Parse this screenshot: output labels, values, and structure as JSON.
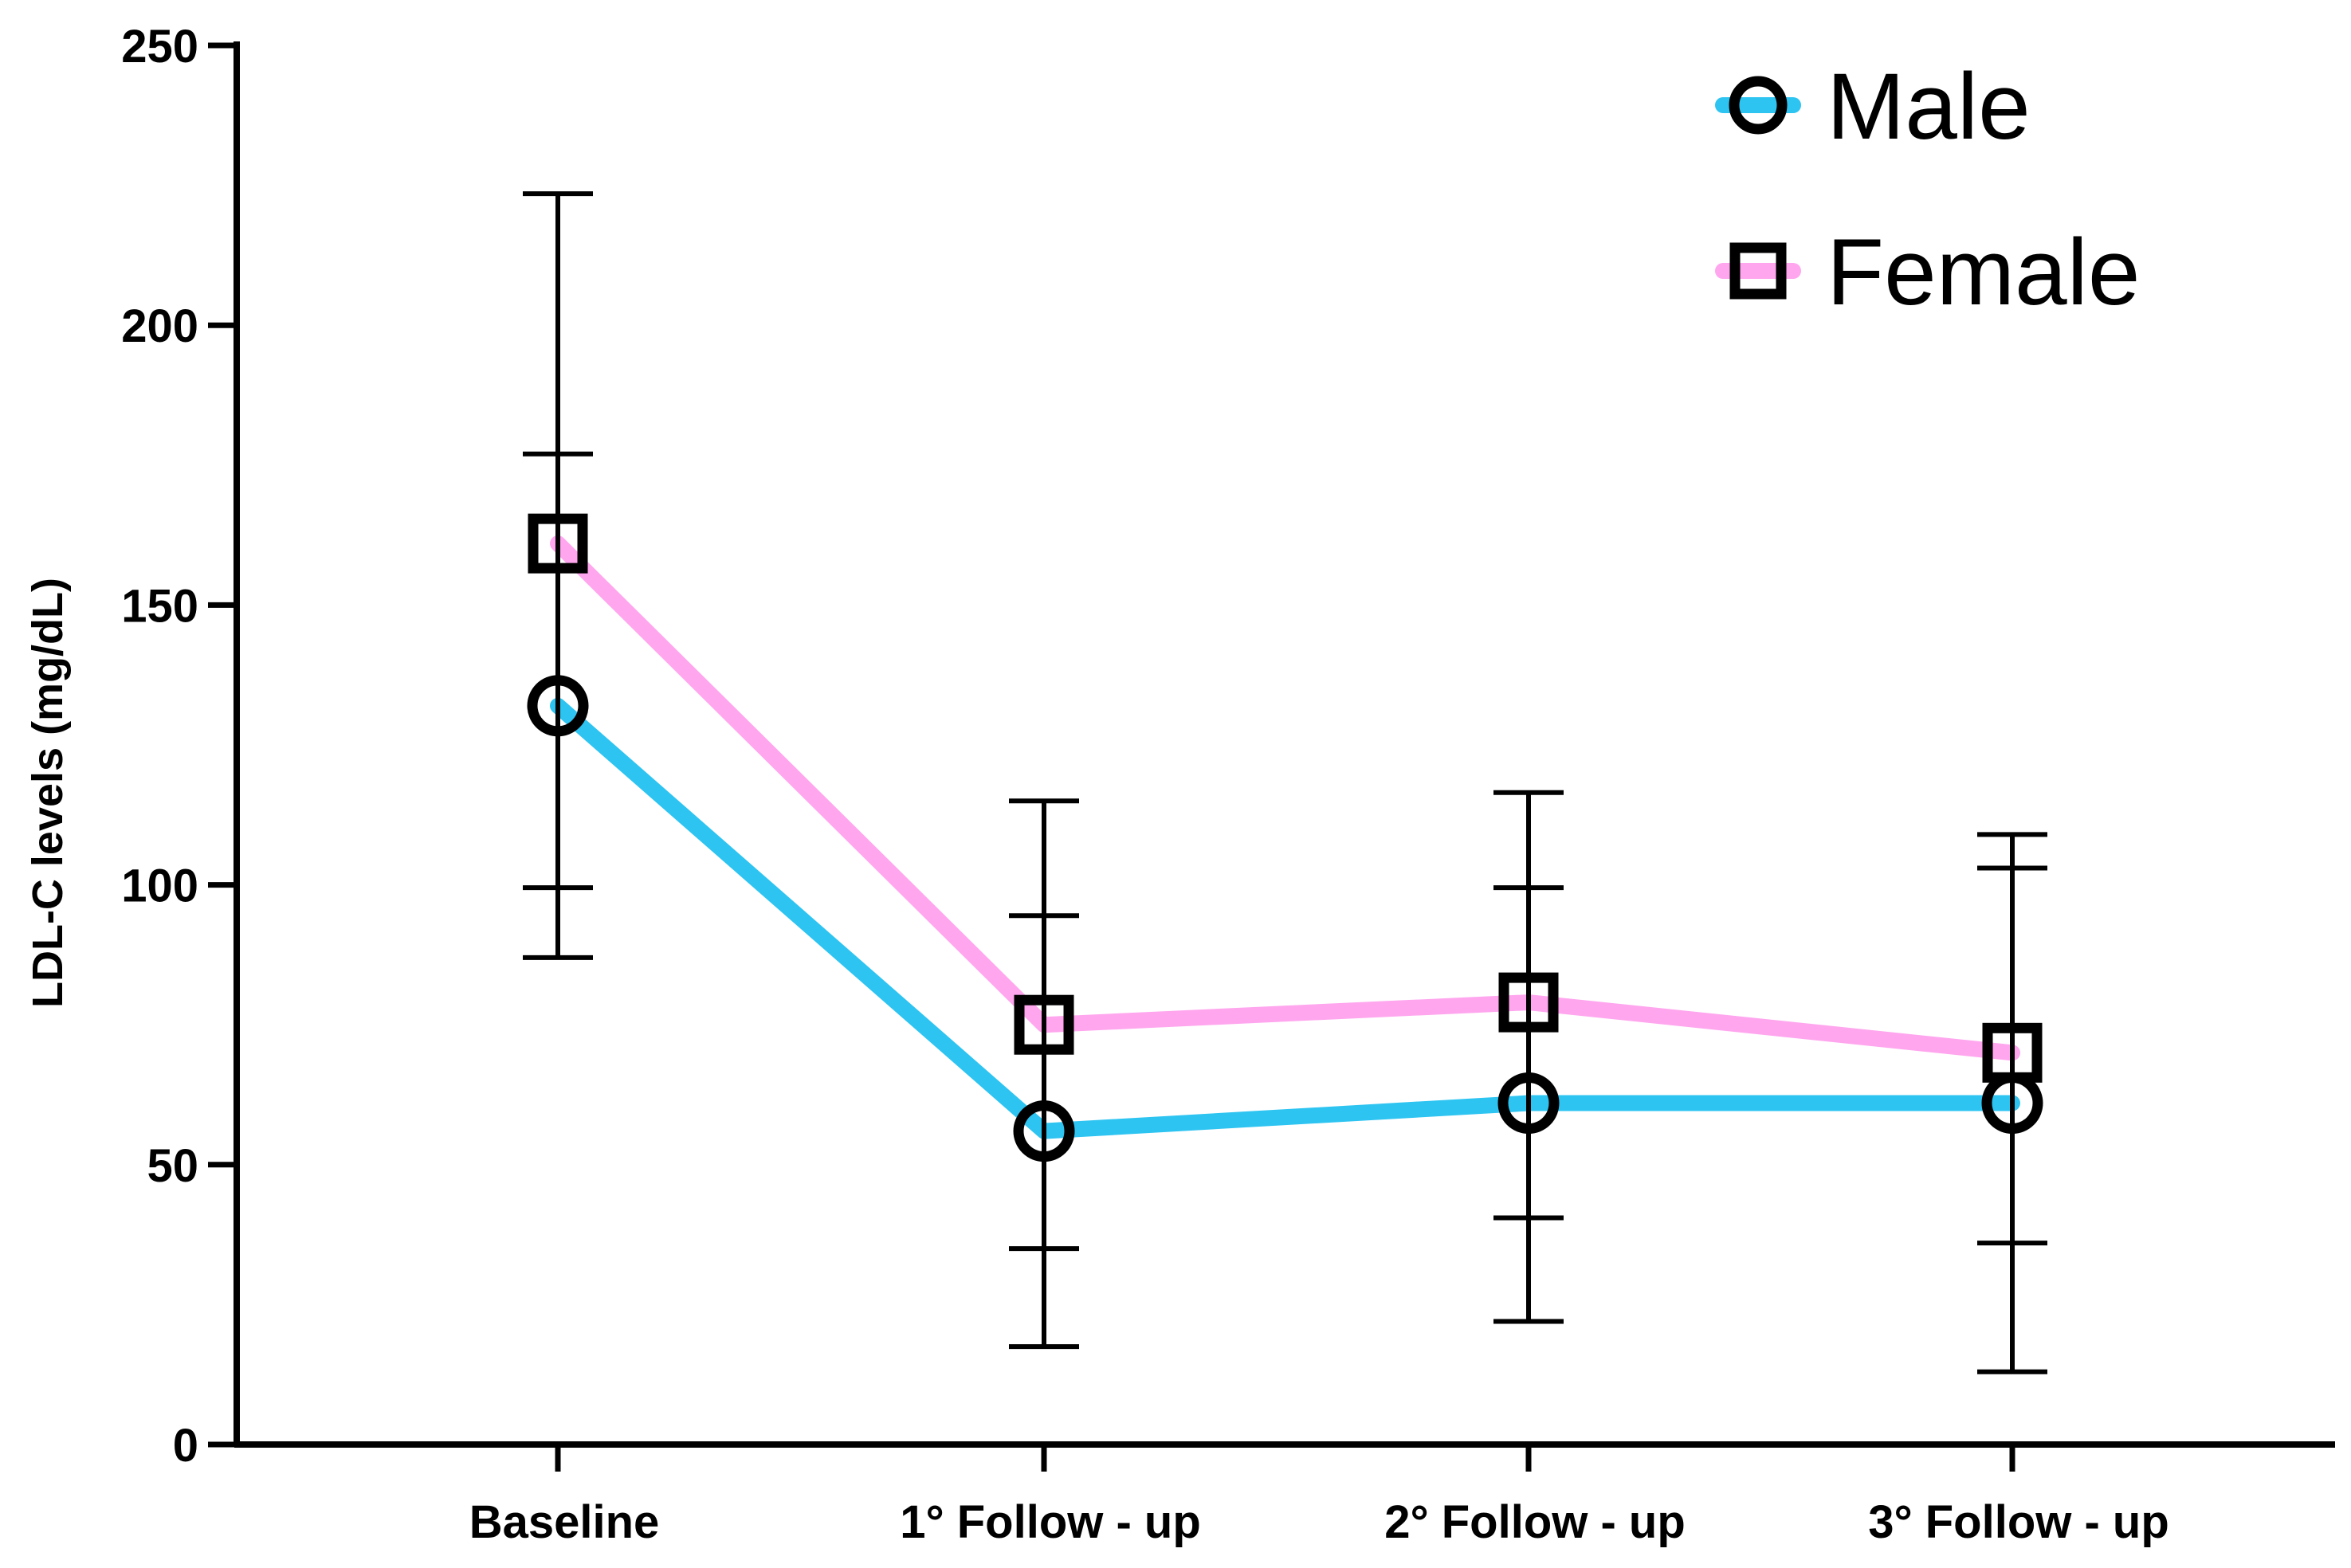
{
  "chart_data": {
    "type": "line",
    "categories": [
      "Baseline",
      "1° Follow - up",
      "2° Follow - up",
      "3° Follow - up"
    ],
    "ylabel": "LDL-C levels (mg/dL)",
    "xlabel": "",
    "ylim": [
      0,
      250
    ],
    "yticks": [
      0,
      50,
      100,
      150,
      200,
      250
    ],
    "grid": false,
    "legend_position": "top-right",
    "series": [
      {
        "name": "Male",
        "marker": "circle",
        "color": "#2ec4f1",
        "values": [
          132,
          56,
          61,
          61
        ],
        "error_low": [
          87,
          17.5,
          22,
          13
        ],
        "error_high": [
          177,
          94.5,
          99.5,
          109
        ]
      },
      {
        "name": "Female",
        "marker": "square",
        "color": "#ffa6ee",
        "values": [
          161,
          75,
          79,
          70
        ],
        "error_low": [
          99.5,
          35,
          40.5,
          36
        ],
        "error_high": [
          223.5,
          115,
          116.5,
          103
        ]
      }
    ]
  }
}
